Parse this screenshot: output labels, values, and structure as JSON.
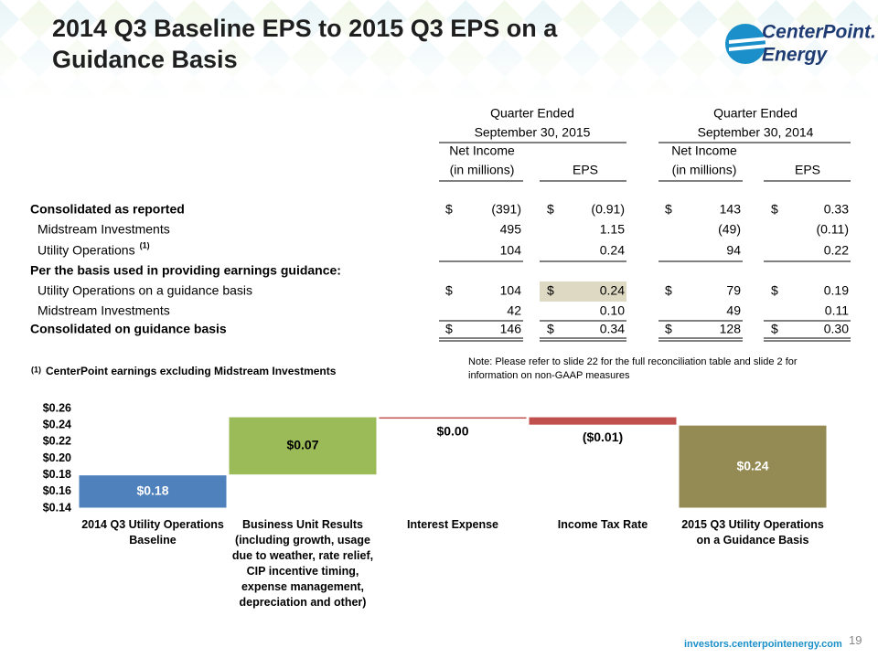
{
  "header": {
    "title": "2014 Q3 Baseline EPS to 2015 Q3 EPS on a Guidance Basis",
    "logo": [
      "CenterPoint.",
      "Energy"
    ]
  },
  "table": {
    "group_headers": [
      [
        "Quarter Ended",
        "September 30, 2015"
      ],
      [
        "Quarter Ended",
        "September 30, 2014"
      ]
    ],
    "column_headers": [
      [
        "Net Income",
        "(in millions)"
      ],
      [
        "EPS"
      ],
      [
        "Net Income",
        "(in millions)"
      ],
      [
        "EPS"
      ]
    ],
    "rows": [
      {
        "label": "Consolidated as reported",
        "cells": [
          {
            "sign": "$",
            "value": "(391)"
          },
          {
            "sign": "$",
            "value": "(0.91)"
          },
          {
            "sign": "$",
            "value": "143"
          },
          {
            "sign": "$",
            "value": "0.33"
          }
        ]
      },
      {
        "label": "Midstream Investments",
        "cells": [
          {
            "value": "495"
          },
          {
            "value": "1.15"
          },
          {
            "value": "(49)"
          },
          {
            "value": "(0.11)"
          }
        ]
      },
      {
        "label": "Utility Operations",
        "sup": "(1)",
        "cells": [
          {
            "value": "104"
          },
          {
            "value": "0.24"
          },
          {
            "value": "94"
          },
          {
            "value": "0.22"
          }
        ]
      },
      {
        "label": "Per the basis used in providing earnings guidance:"
      },
      {
        "label": "Utility Operations on a guidance basis",
        "cells": [
          {
            "sign": "$",
            "value": "104"
          },
          {
            "sign": "$",
            "value": "0.24"
          },
          {
            "sign": "$",
            "value": "79"
          },
          {
            "sign": "$",
            "value": "0.19"
          }
        ]
      },
      {
        "label": "Midstream Investments",
        "cells": [
          {
            "value": "42"
          },
          {
            "value": "0.10"
          },
          {
            "value": "49"
          },
          {
            "value": "0.11"
          }
        ]
      },
      {
        "label": "Consolidated on guidance basis",
        "cells": [
          {
            "sign": "$",
            "value": "146"
          },
          {
            "sign": "$",
            "value": "0.34"
          },
          {
            "sign": "$",
            "value": "128"
          },
          {
            "sign": "$",
            "value": "0.30"
          }
        ]
      }
    ]
  },
  "footnote": {
    "marker": "(1)",
    "text": "CenterPoint earnings excluding Midstream Investments"
  },
  "note": "Note:  Please refer to slide 22 for the full reconciliation table and slide 2 for information on non-GAAP measures",
  "chart_data": {
    "type": "waterfall",
    "categories": [
      "2014 Q3 Utility Operations Baseline",
      "Business Unit Results (including growth, usage due to weather, rate relief, CIP incentive timing, expense management, depreciation and other)",
      "Interest Expense",
      "Income Tax Rate",
      "2015 Q3 Utility Operations on a Guidance Basis"
    ],
    "values": [
      0.18,
      0.07,
      0.0,
      -0.01,
      0.24
    ],
    "value_labels": [
      "$0.18",
      "$0.07",
      "$0.00",
      "($0.01)",
      "$0.24"
    ],
    "colors": [
      "#4f81bd",
      "#9bbb59",
      "#c0504d",
      "#c0504d",
      "#948a54"
    ],
    "ylim": [
      0.14,
      0.26
    ],
    "yticks": [
      {
        "value": 0.14,
        "label": "$0.14"
      },
      {
        "value": 0.16,
        "label": "$0.16"
      },
      {
        "value": 0.18,
        "label": "$0.18"
      },
      {
        "value": 0.2,
        "label": "$0.20"
      },
      {
        "value": 0.22,
        "label": "$0.22"
      },
      {
        "value": 0.24,
        "label": "$0.24"
      },
      {
        "value": 0.26,
        "label": "$0.26"
      }
    ]
  },
  "footer": {
    "url": "investors.centerpointenergy.com",
    "page": "19"
  }
}
